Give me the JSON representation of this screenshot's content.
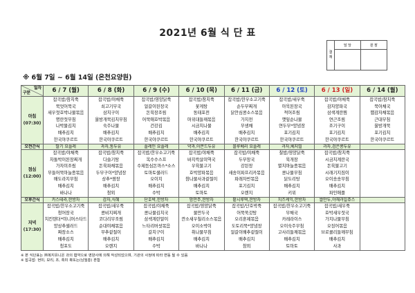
{
  "title": "2021년 6월 식 단 표",
  "approval": {
    "label": "결\n재",
    "col1": "담 당",
    "col2": "원 장"
  },
  "subtitle": "※ 6월 7일 ~ 6월 14일 (온천요양원)",
  "corner": {
    "top": "일자",
    "bottom": "구분"
  },
  "colors": {
    "header_bg": "#e4f4d6",
    "saturday": "#1f3fbf",
    "sunday": "#d02020"
  },
  "rows": {
    "breakfast": "아침\n(07:30)",
    "am_snack": "오전간식",
    "lunch": "점심\n(12:00)",
    "pm_snack": "오후간식",
    "dinner": "저녁\n(17:30)"
  },
  "days": [
    {
      "date": "6 / 7 (월)",
      "type": "weekday",
      "breakfast": [
        "잡곡밥/참치죽",
        "북엇어묵국",
        "새우젓호박나물볶음",
        "명란젓무침",
        "나박물김치",
        "배추김치",
        "한국야쿠르트"
      ],
      "am_snack": "딸기 요플레",
      "lunch": [
        "잡곡밥/야채죽",
        "차돌박이된장찌개",
        "가자미조림",
        "무들어묵마늘종볶음",
        "배도라지무침",
        "배추김치",
        "바나나"
      ],
      "pm_snack": "카스테라,한방차",
      "dinner": [
        "잡곡밥/한우소고기죽",
        "청어장국",
        "치킨텐더*미니머스타드",
        "양상추샐러드",
        "짜장소스",
        "배추김치",
        "청포도"
      ]
    },
    {
      "date": "6 / 8 (화)",
      "type": "weekday",
      "breakfast": [
        "잡곡밥/야채죽",
        "쇠고기무국",
        "삼치구이",
        "올방개묵김치무침",
        "숙주나물",
        "배추김치",
        "한국야쿠르트"
      ],
      "am_snack": "과자,통두유",
      "lunch": [
        "잡곡밥/참치죽",
        "다슬기탕",
        "돈육파채볶음",
        "두부구이*양념장",
        "상추*쌈장",
        "배추김치",
        "참외"
      ],
      "pm_snack": "감자,식혜",
      "dinner": [
        "잡곡밥/새우죽",
        "콩비지찌개",
        "코다리무조림",
        "순대야채볶음",
        "부추겉절이",
        "배추김치",
        "오렌지"
      ]
    },
    {
      "date": "6 / 9 (수)",
      "type": "weekday",
      "breakfast": [
        "잡곡밥/영양닭죽",
        "얼갈이된장국",
        "돈육장조림",
        "어묵애호박볶음",
        "건강김",
        "배추김치",
        "한국야쿠르트"
      ],
      "am_snack": "플레인 요플레",
      "lunch": [
        "잡곡밥/한우소고기죽",
        "옥수수스프",
        "수제등심돈까스*소스",
        "토마토샐러드",
        "오이지",
        "배추김치",
        "수박"
      ],
      "pm_snack": "단호박,한방차",
      "dinner": [
        "잡곡밥/야채죽",
        "콩나물김치국",
        "삼색계란말이",
        "느타리버섯볶음",
        "갈치구이",
        "배추김치",
        "수박"
      ]
    },
    {
      "date": "6 / 10 (목)",
      "type": "weekday",
      "breakfast": [
        "잡곡밥/참치죽",
        "꽃게탕",
        "동태포전",
        "머위대들깨볶음",
        "시금치나물",
        "배추김치",
        "한국야쿠르트"
      ],
      "am_snack": "약과,아몬드두유",
      "lunch": [
        "잡곡밥/야채죽",
        "바지락살미역국",
        "우육불고기",
        "호박양파볶음",
        "참나물사과겉절이",
        "배추김치",
        "토마토"
      ],
      "pm_snack": "밤만주,한방차",
      "dinner": [
        "잡곡밥/영양닭죽",
        "물만두국",
        "깐소새우칠리소스볶음",
        "오이소박이",
        "취나물무침",
        "배추김치",
        "바나나"
      ]
    },
    {
      "date": "6 / 11 (금)",
      "type": "weekday",
      "breakfast": [
        "잡곡밥/한우소고기죽",
        "순두부찌개",
        "닭안심콩소스볶음",
        "가지전",
        "무생채",
        "배추김치",
        "한국야쿠르트"
      ],
      "am_snack": "블루베리 요플레",
      "lunch": [
        "잡곡밥/야채죽",
        "두부장국",
        "강된장",
        "새송이파프리카볶음",
        "파래자반볶음",
        "포기김치",
        "오렌지"
      ],
      "pm_snack": "팥시루떡,한방차",
      "dinner": [
        "잡곡밥/단호박죽",
        "어묵쑥갓탕",
        "오리훈제볶음",
        "도토리묵*양념장",
        "얼갈이배추겉절이",
        "배추김치",
        "참외"
      ]
    },
    {
      "date": "6 / 12 (토)",
      "type": "saturday",
      "breakfast": [
        "잡곡밥/새우죽",
        "아욱된장국",
        "적어조림",
        "깻잎순나물",
        "연두부*양념장",
        "포기김치",
        "한국야쿠르트"
      ],
      "am_snack": "과자,베지밀",
      "lunch": [
        "찰밥/영양닭죽",
        "육개장",
        "멸치마늘종볶음",
        "콩나물무침",
        "닭도리탕",
        "배추김치",
        "키위"
      ],
      "pm_snack": "치즈케익,한방차",
      "dinner": [
        "잡곡밥/한우소고기죽",
        "무채국",
        "카레라이스",
        "오이숙주무침",
        "고사리들깨볶음",
        "배추김치",
        "토마토"
      ]
    },
    {
      "date": "6 / 13 (일)",
      "type": "sunday",
      "breakfast": [
        "잡곡밥/야채죽",
        "감자양파국",
        "삼색계란찜",
        "연근조림",
        "조기구이",
        "포기김치",
        "한국야쿠르트"
      ],
      "am_snack": "과자,검은콩두유",
      "lunch": [
        "잡곡밥/참치죽",
        "시금치계란국",
        "돈육불고기",
        "시래기지짐이",
        "오이송송무침",
        "배추김치",
        "파인애플"
      ],
      "pm_snack": "쌀만두,야채과일쥬스",
      "dinner": [
        "잡곡밥/새우죽",
        "호박새우젓국",
        "가지나물무침",
        "오징어볶음",
        "브로콜리들깨무침",
        "배추김치",
        "사과"
      ]
    },
    {
      "date": "6 / 14 (월)",
      "type": "weekday",
      "breakfast": [
        "잡곡밥/참치죽",
        "북어채국",
        "햄감자채볶음",
        "근대무침",
        "올방개묵",
        "포기김치",
        "한국야쿠르트"
      ],
      "am_snack": "",
      "lunch": [],
      "pm_snack": "",
      "dinner": []
    }
  ],
  "footnotes": [
    "※ 본 식단표는 ㈜복지유니온 과의 협약으로 영양사에 의해 작성되었으며, 기관의 사정에 따라 변동 될 수 있음",
    "※ 잡곡밥: 현미, 보리, 조, 흑미 혹또는(남월홍) 혼합"
  ]
}
